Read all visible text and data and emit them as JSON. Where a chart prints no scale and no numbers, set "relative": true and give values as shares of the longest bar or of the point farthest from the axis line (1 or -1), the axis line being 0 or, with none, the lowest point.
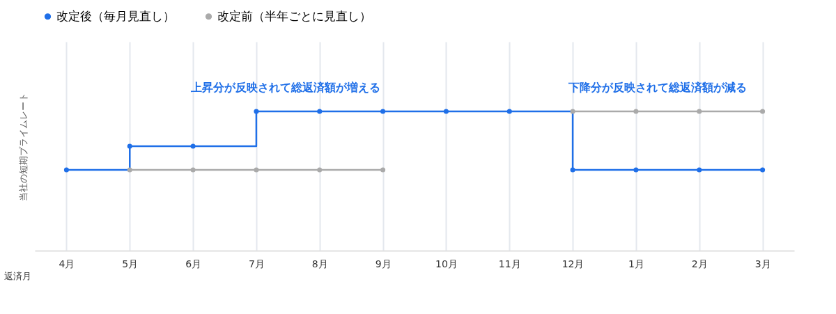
{
  "chart_data": {
    "type": "step",
    "relative": true,
    "ylabel": "当社の短期プライムレート",
    "xlabel": "返済月",
    "categories": [
      "4月",
      "5月",
      "6月",
      "7月",
      "8月",
      "9月",
      "10月",
      "11月",
      "12月",
      "1月",
      "2月",
      "3月"
    ],
    "series": [
      {
        "name": "改定後（毎月見直し）",
        "color": "#1f6fe8",
        "values": [
          0.58,
          0.75,
          0.75,
          1,
          1,
          1,
          1,
          1,
          0.58,
          0.58,
          0.58,
          0.58
        ]
      },
      {
        "name": "改定前（半年ごとに見直し）",
        "color": "#aaaaaa",
        "values": [
          null,
          0.58,
          0.58,
          0.58,
          0.58,
          0.58,
          null,
          null,
          1,
          1,
          1,
          1
        ]
      }
    ],
    "annotations": [
      "上昇分が反映されて総返済額が増える",
      "下降分が反映されて総返済額が減る"
    ],
    "marker": "circle",
    "grid": "x",
    "legend": "top"
  }
}
